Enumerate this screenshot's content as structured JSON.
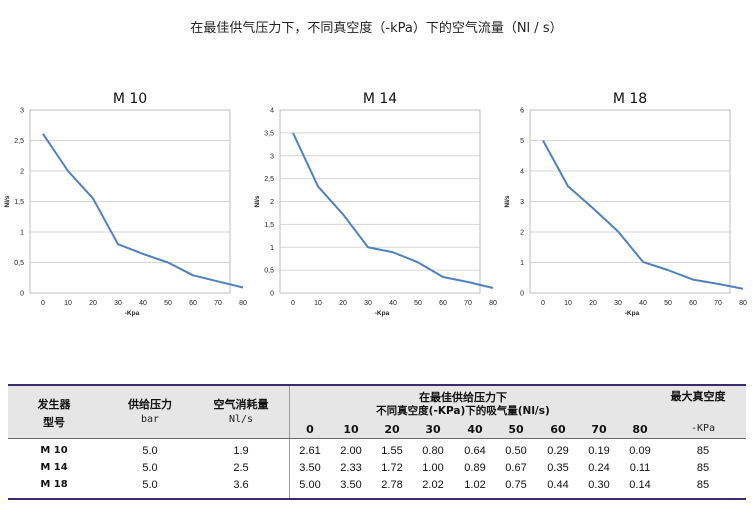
{
  "page": {
    "title": "在最佳供气压力下，不同真空度（-kPa）下的空气流量（Nl / s）"
  },
  "chart_data": [
    {
      "type": "line",
      "title": "M 10",
      "xlabel": "-Kpa",
      "ylabel": "Nl/s",
      "x": [
        0,
        10,
        20,
        30,
        40,
        50,
        60,
        70,
        80
      ],
      "xlim": [
        0,
        80
      ],
      "ylim": [
        0,
        3
      ],
      "yticks": [
        0,
        0.5,
        1,
        1.5,
        2,
        2.5,
        3
      ],
      "ytick_labels": [
        "0",
        "0,5",
        "1",
        "1,5",
        "2",
        "2,5",
        "3"
      ],
      "grid": true,
      "series": [
        {
          "values": [
            2.61,
            2.0,
            1.55,
            0.8,
            0.64,
            0.5,
            0.29,
            0.19,
            0.09
          ]
        }
      ],
      "line_color": "#4f81bd"
    },
    {
      "type": "line",
      "title": "M 14",
      "xlabel": "-Kpa",
      "ylabel": "Nl/s",
      "x": [
        0,
        10,
        20,
        30,
        40,
        50,
        60,
        70,
        80
      ],
      "xlim": [
        0,
        80
      ],
      "ylim": [
        0,
        4
      ],
      "yticks": [
        0,
        0.5,
        1,
        1.5,
        2,
        2.5,
        3,
        3.5,
        4
      ],
      "ytick_labels": [
        "0",
        "0,5",
        "1",
        "1,5",
        "2",
        "2,5",
        "3",
        "3,5",
        "4"
      ],
      "grid": true,
      "series": [
        {
          "values": [
            3.5,
            2.33,
            1.72,
            1.0,
            0.89,
            0.67,
            0.35,
            0.24,
            0.11
          ]
        }
      ],
      "line_color": "#4f81bd"
    },
    {
      "type": "line",
      "title": "M 18",
      "xlabel": "-Kpa",
      "ylabel": "Nl/s",
      "x": [
        0,
        10,
        20,
        30,
        40,
        50,
        60,
        70,
        80
      ],
      "xlim": [
        0,
        80
      ],
      "ylim": [
        0,
        6
      ],
      "yticks": [
        0,
        1,
        2,
        3,
        4,
        5,
        6
      ],
      "ytick_labels": [
        "0",
        "1",
        "2",
        "3",
        "4",
        "5",
        "6"
      ],
      "grid": true,
      "series": [
        {
          "values": [
            5.0,
            3.5,
            2.78,
            2.02,
            1.02,
            0.75,
            0.44,
            0.3,
            0.14
          ]
        }
      ],
      "line_color": "#4f81bd"
    }
  ],
  "table": {
    "headers": {
      "generator_line1": "发生器",
      "generator_line2": "型号",
      "supply_pressure": "供给压力",
      "supply_unit": "bar",
      "air_consumption": "空气消耗量",
      "consumption_unit": "Nl/s",
      "suction_line1": "在最佳供给压力下",
      "suction_line2": "不同真空度(-KPa)下的吸气量(Nl/s)",
      "max_vacuum": "最大真空度",
      "max_vacuum_unit": "-KPa",
      "vacuum_levels": [
        "0",
        "10",
        "20",
        "30",
        "40",
        "50",
        "60",
        "70",
        "80"
      ]
    },
    "rows": [
      {
        "model": "M 10",
        "pressure": "5.0",
        "consumption": "1.9",
        "flows": [
          "2.61",
          "2.00",
          "1.55",
          "0.80",
          "0.64",
          "0.50",
          "0.29",
          "0.19",
          "0.09"
        ],
        "max_vacuum": "85"
      },
      {
        "model": "M 14",
        "pressure": "5.0",
        "consumption": "2.5",
        "flows": [
          "3.50",
          "2.33",
          "1.72",
          "1.00",
          "0.89",
          "0.67",
          "0.35",
          "0.24",
          "0.11"
        ],
        "max_vacuum": "85"
      },
      {
        "model": "M 18",
        "pressure": "5.0",
        "consumption": "3.6",
        "flows": [
          "5.00",
          "3.50",
          "2.78",
          "2.02",
          "1.02",
          "0.75",
          "0.44",
          "0.30",
          "0.14"
        ],
        "max_vacuum": "85"
      }
    ]
  }
}
